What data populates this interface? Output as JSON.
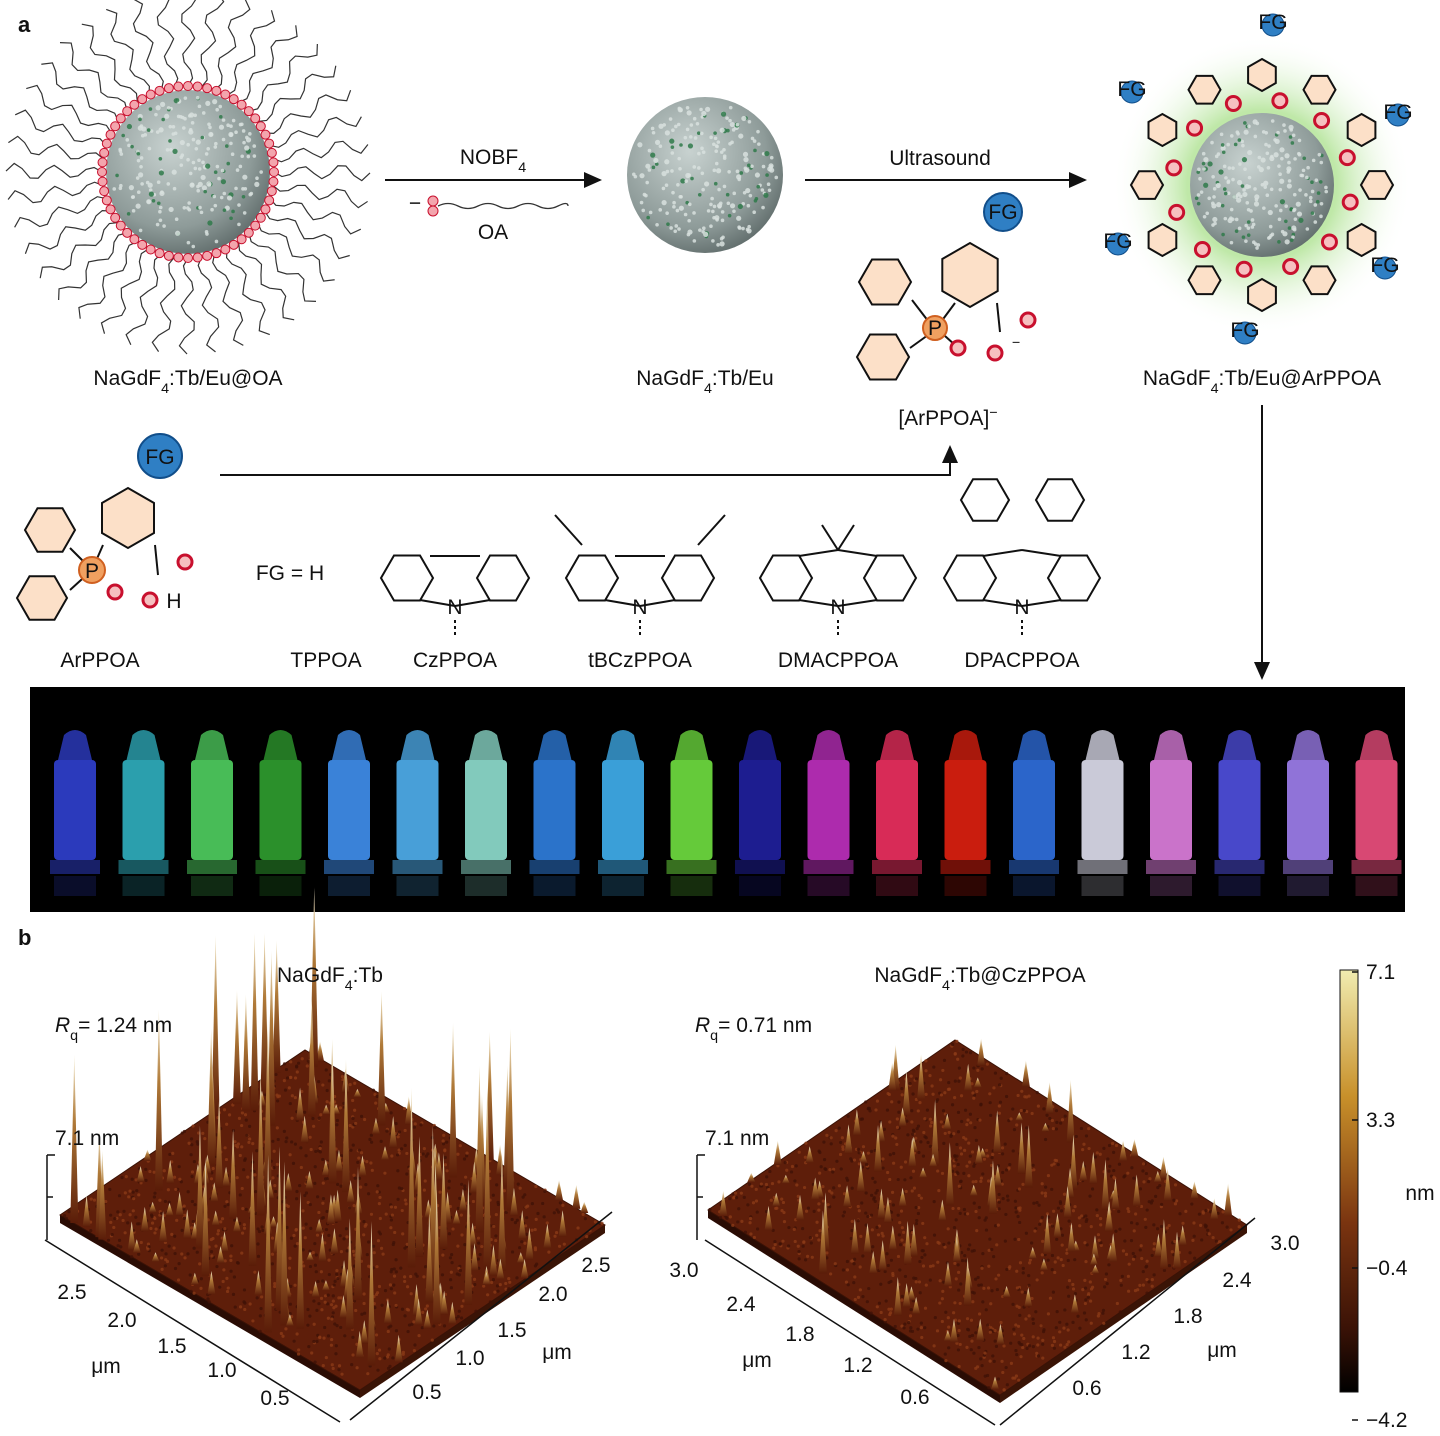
{
  "panel_a": {
    "label": "a",
    "np_oa": {
      "pre": "NaGdF",
      "sub": "4",
      "post": ":Tb/Eu@OA"
    },
    "np_bare": {
      "pre": "NaGdF",
      "sub": "4",
      "post": ":Tb/Eu"
    },
    "np_arppoa": {
      "pre": "NaGdF",
      "sub": "4",
      "post": ":Tb/Eu@ArPPOA"
    },
    "step1": {
      "reagent_pre": "NOBF",
      "reagent_sub": "4",
      "ligand": "OA",
      "charge": "−"
    },
    "step2": {
      "condition": "Ultrasound",
      "ligand": "[ArPPOA]",
      "charge": "−"
    },
    "atoms": {
      "fg": "FG",
      "p": "P",
      "n": "N",
      "h": "H"
    },
    "fg_equals_h": "FG = H",
    "ligands": [
      "ArPPOA",
      "TPPOA",
      "CzPPOA",
      "tBCzPPOA",
      "DMACPPOA",
      "DPACPPOA"
    ]
  },
  "panel_b": {
    "label": "b",
    "left": {
      "title_pre": "NaGdF",
      "title_sub": "4",
      "title_post": ":Tb",
      "rq_symbol": "R",
      "rq_sub": "q",
      "rq_value": "= 1.24 nm",
      "z_label": "7.1 nm",
      "left_ticks": [
        "2.5",
        "2.0",
        "1.5",
        "1.0",
        "0.5"
      ],
      "right_ticks": [
        "0.5",
        "1.0",
        "1.5",
        "2.0",
        "2.5"
      ],
      "unit": "μm"
    },
    "right": {
      "title_pre": "NaGdF",
      "title_sub": "4",
      "title_post": ":Tb@CzPPOA",
      "rq_symbol": "R",
      "rq_sub": "q",
      "rq_value": "= 0.71 nm",
      "z_label": "7.1 nm",
      "left_ticks": [
        "3.0",
        "2.4",
        "1.8",
        "1.2",
        "0.6"
      ],
      "right_ticks": [
        "0.6",
        "1.2",
        "1.8",
        "2.4",
        "3.0"
      ],
      "unit": "μm"
    },
    "colorbar": {
      "ticks": [
        "7.1",
        "3.3",
        "−0.4",
        "−4.2"
      ],
      "unit": "nm"
    }
  }
}
